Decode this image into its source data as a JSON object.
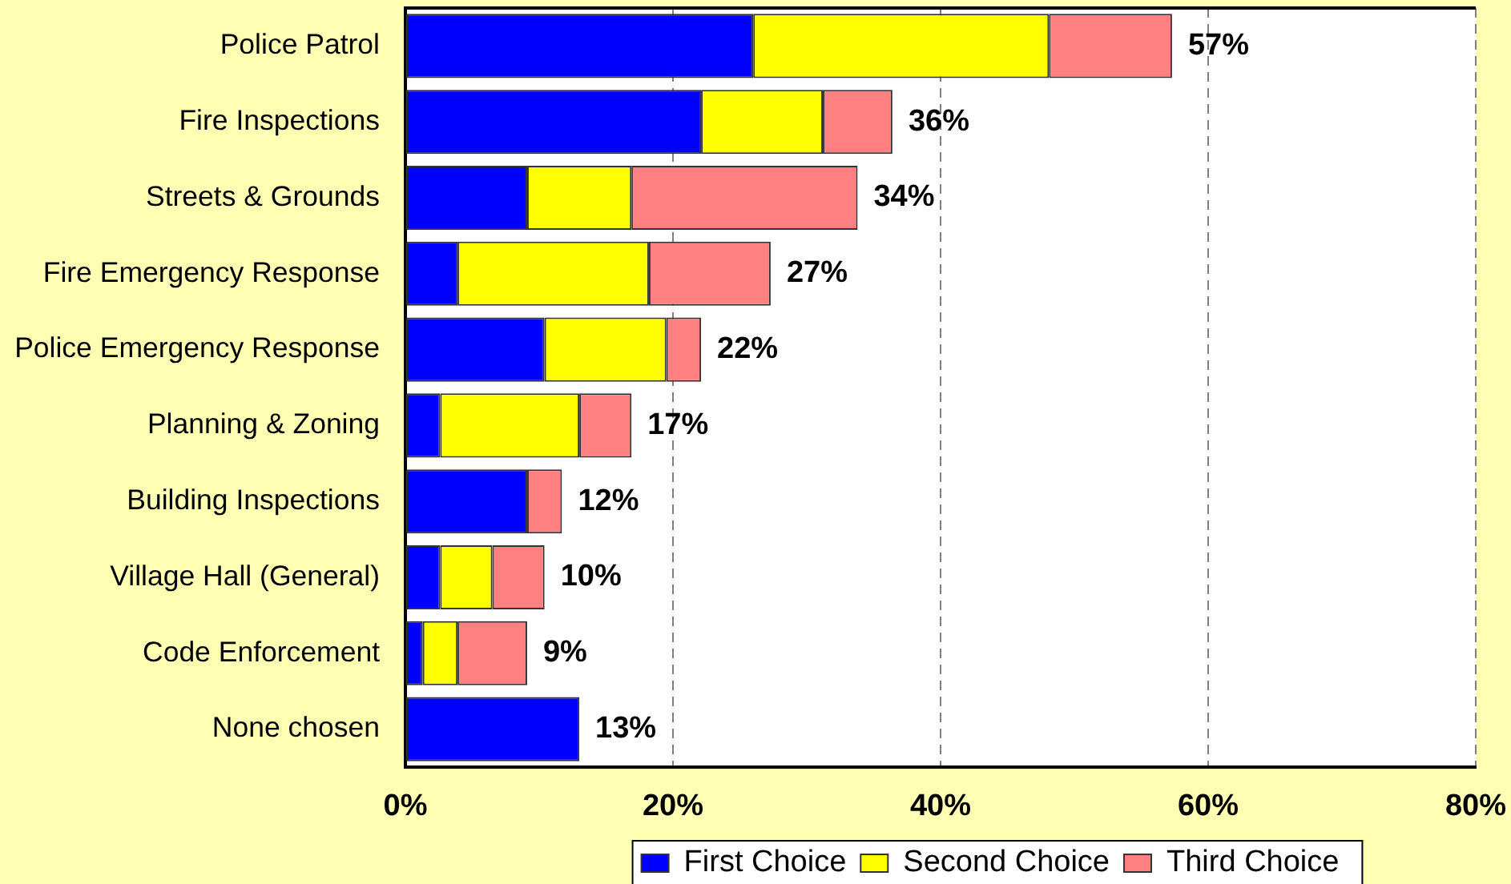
{
  "chart_data": {
    "type": "bar",
    "orientation": "horizontal",
    "stacked": true,
    "categories": [
      "Police Patrol",
      "Fire Inspections",
      "Streets & Grounds",
      "Fire Emergency Response",
      "Police Emergency Response",
      "Planning & Zoning",
      "Building Inspections",
      "Village Hall (General)",
      "Code Enforcement",
      "None chosen"
    ],
    "series": [
      {
        "name": "First Choice",
        "color": "#0000ff",
        "values": [
          26.0,
          22.1,
          9.1,
          3.9,
          10.4,
          2.6,
          9.1,
          2.6,
          1.3,
          13.0
        ]
      },
      {
        "name": "Second Choice",
        "color": "#ffff00",
        "values": [
          22.1,
          9.1,
          7.8,
          14.3,
          9.1,
          10.4,
          0,
          3.9,
          2.6,
          0
        ]
      },
      {
        "name": "Third Choice",
        "color": "#ff8080",
        "values": [
          9.2,
          5.2,
          16.9,
          9.1,
          2.6,
          3.9,
          2.6,
          3.9,
          5.2,
          0
        ]
      }
    ],
    "xlim": [
      0,
      80
    ],
    "xticks": [
      {
        "value": 0,
        "label": "0%"
      },
      {
        "value": 20,
        "label": "20%"
      },
      {
        "value": 40,
        "label": "40%"
      },
      {
        "value": 60,
        "label": "60%"
      },
      {
        "value": 80,
        "label": "80%"
      }
    ],
    "grid": "x",
    "legend": "bottom",
    "totals": [
      "57%",
      "36%",
      "34%",
      "27%",
      "22%",
      "17%",
      "12%",
      "10%",
      "9%",
      "13%"
    ]
  }
}
